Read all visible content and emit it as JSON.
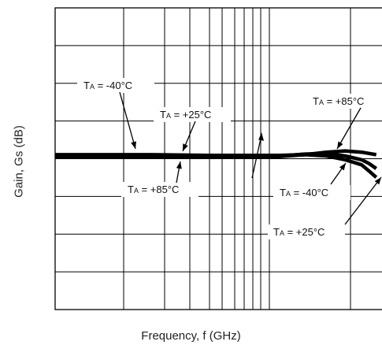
{
  "chart_data": {
    "type": "line",
    "xlabel": "Frequency, f (GHz)",
    "ylabel": "Gain, Gs (dB)",
    "grid": true,
    "x_scale": "log",
    "series": [
      {
        "name": "TA = -40°C",
        "x": [
          1,
          2,
          3,
          4,
          5,
          6,
          7,
          8,
          9,
          9.5,
          10
        ],
        "y": [
          0.1,
          0.1,
          0.05,
          0.05,
          0.05,
          0.1,
          0.0,
          -0.3,
          -0.7,
          -1.2,
          -1.7
        ]
      },
      {
        "name": "TA = +25°C",
        "x": [
          1,
          2,
          3,
          4,
          5,
          6,
          7,
          8,
          9,
          9.5,
          10
        ],
        "y": [
          0.0,
          0.0,
          0.0,
          0.0,
          0.0,
          0.15,
          0.2,
          0.0,
          -0.3,
          -0.6,
          -1.0
        ]
      },
      {
        "name": "TA = +85°C",
        "x": [
          1,
          2,
          3,
          4,
          5,
          6,
          7,
          8,
          9,
          9.5,
          10
        ],
        "y": [
          -0.1,
          -0.1,
          -0.1,
          -0.1,
          -0.05,
          0.1,
          0.3,
          0.4,
          0.3,
          0.2,
          0.1
        ]
      }
    ],
    "annotations": [
      {
        "label_main": "T",
        "label_sub": "A",
        "label_rest": " = -40°C",
        "series": 0
      },
      {
        "label_main": "T",
        "label_sub": "A",
        "label_rest": " = +25°C",
        "series": 1
      },
      {
        "label_main": "T",
        "label_sub": "A",
        "label_rest": " = +85°C",
        "series": 2
      },
      {
        "label_main": "T",
        "label_sub": "A",
        "label_rest": " = +85°C",
        "series": 2
      },
      {
        "label_main": "T",
        "label_sub": "A",
        "label_rest": " = -40°C",
        "series": 0
      },
      {
        "label_main": "T",
        "label_sub": "A",
        "label_rest": " = +25°C",
        "series": 1
      }
    ]
  }
}
